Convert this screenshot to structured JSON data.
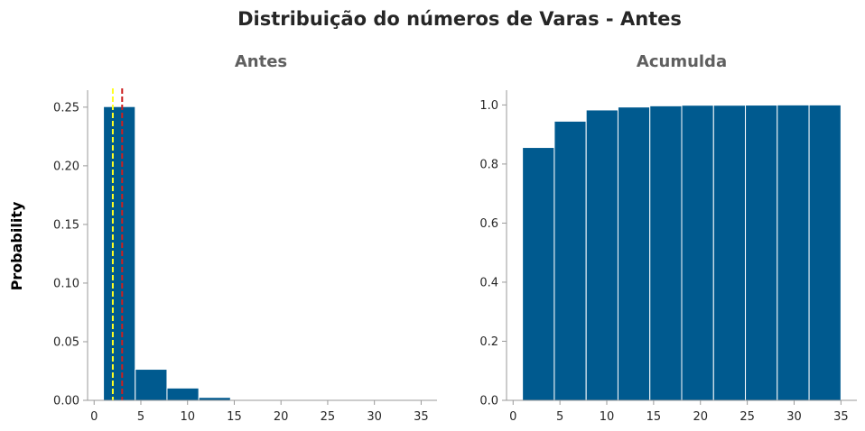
{
  "title": "Distribuição do números de Varas - Antes",
  "ylabel": "Probability",
  "colors": {
    "bar": "#005a8f",
    "bar_edge": "#ffffff",
    "mean_line": "#cc1f1f",
    "median_line": "#ffff22",
    "text": "#262626",
    "subtitle": "#5f5f5f"
  },
  "chart_data": [
    {
      "type": "bar",
      "title": "Antes",
      "bin_edges": [
        1,
        4.4,
        7.8,
        11.2,
        14.6,
        18,
        21.4,
        24.8,
        28.2,
        31.6,
        35
      ],
      "values": [
        0.2505,
        0.0265,
        0.0105,
        0.0025,
        0.0005,
        0.0002,
        0.0001,
        0.0001,
        0.0001,
        0.0001
      ],
      "xlim": [
        -0.7,
        36.7
      ],
      "ylim": [
        0,
        0.2645
      ],
      "xticks": [
        0,
        5,
        10,
        15,
        20,
        25,
        30,
        35
      ],
      "yticks": [
        0.0,
        0.05,
        0.1,
        0.15,
        0.2,
        0.25
      ],
      "ytick_labels": [
        "0.00",
        "0.05",
        "0.10",
        "0.15",
        "0.20",
        "0.25"
      ],
      "vlines": [
        {
          "x": 2.0,
          "color": "#ffff22",
          "style": "dashed"
        },
        {
          "x": 3.0,
          "color": "#cc1f1f",
          "style": "dashed"
        }
      ]
    },
    {
      "type": "bar",
      "title": "Acumulda",
      "bin_edges": [
        1,
        4.4,
        7.8,
        11.2,
        14.6,
        18,
        21.4,
        24.8,
        28.2,
        31.6,
        35
      ],
      "values": [
        0.856,
        0.945,
        0.983,
        0.993,
        0.997,
        0.999,
        0.999,
        0.9995,
        1.0,
        1.0
      ],
      "xlim": [
        -0.7,
        36.7
      ],
      "ylim": [
        0,
        1.05
      ],
      "xticks": [
        0,
        5,
        10,
        15,
        20,
        25,
        30,
        35
      ],
      "yticks": [
        0.0,
        0.2,
        0.4,
        0.6,
        0.8,
        1.0
      ],
      "ytick_labels": [
        "0.0",
        "0.2",
        "0.4",
        "0.6",
        "0.8",
        "1.0"
      ],
      "vlines": []
    }
  ]
}
